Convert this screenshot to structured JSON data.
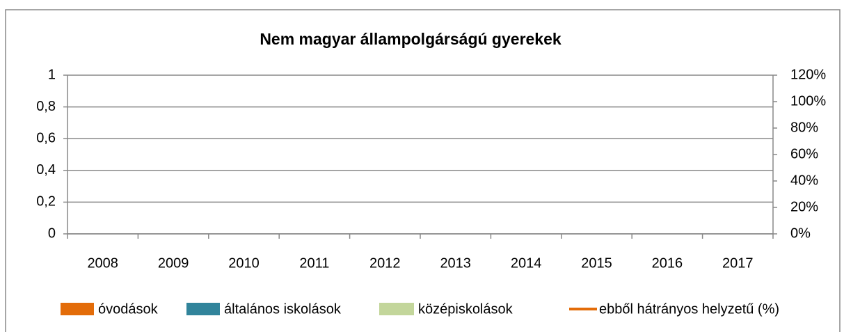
{
  "chart_data": {
    "type": "bar",
    "title": "Nem magyar állampolgárságú gyerekek",
    "categories": [
      "2008",
      "2009",
      "2010",
      "2011",
      "2012",
      "2013",
      "2014",
      "2015",
      "2016",
      "2017"
    ],
    "series": [
      {
        "name": "óvodások",
        "color": "#e36c09",
        "values": [
          null,
          null,
          null,
          null,
          null,
          null,
          null,
          null,
          null,
          null
        ]
      },
      {
        "name": "általános iskolások",
        "color": "#31849b",
        "values": [
          null,
          null,
          null,
          null,
          null,
          null,
          null,
          null,
          null,
          null
        ]
      },
      {
        "name": "középiskolások",
        "color": "#c3d69b",
        "values": [
          null,
          null,
          null,
          null,
          null,
          null,
          null,
          null,
          null,
          null
        ]
      },
      {
        "name": "ebből hátrányos helyzetű (%)",
        "color": "#e36c09",
        "type": "line",
        "axis": "y2",
        "values": [
          null,
          null,
          null,
          null,
          null,
          null,
          null,
          null,
          null,
          null
        ]
      }
    ],
    "ylim": [
      0,
      1
    ],
    "yticks": [
      0,
      {
        "value": 0.2,
        "label": "0,2"
      },
      {
        "value": 0.4,
        "label": "0,4"
      },
      {
        "value": 0.6,
        "label": "0,6"
      },
      {
        "value": 0.8,
        "label": "0,8"
      },
      1
    ],
    "y2lim": [
      0,
      120
    ],
    "y2ticks": [
      {
        "value": 0,
        "label": "0%"
      },
      {
        "value": 20,
        "label": "20%"
      },
      {
        "value": 40,
        "label": "40%"
      },
      {
        "value": 60,
        "label": "60%"
      },
      {
        "value": 80,
        "label": "80%"
      },
      {
        "value": 100,
        "label": "100%"
      },
      {
        "value": 120,
        "label": "120%"
      }
    ],
    "grid": true,
    "legend": "bottom"
  }
}
